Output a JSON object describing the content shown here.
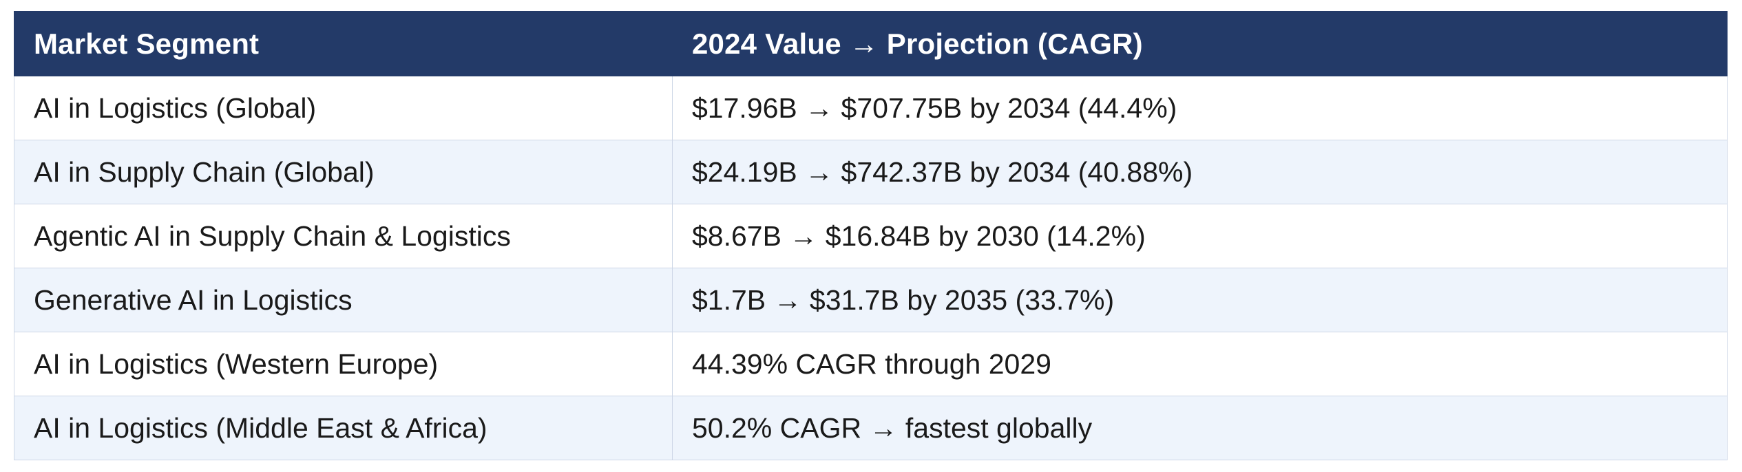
{
  "table": {
    "headers": [
      "Market Segment",
      "2024 Value → Projection (CAGR)"
    ],
    "rows": [
      [
        "AI in Logistics (Global)",
        "$17.96B → $707.75B by 2034 (44.4%)"
      ],
      [
        "AI in Supply Chain (Global)",
        "$24.19B → $742.37B by 2034 (40.88%)"
      ],
      [
        "Agentic AI in Supply Chain & Logistics",
        "$8.67B → $16.84B by 2030 (14.2%)"
      ],
      [
        "Generative AI in Logistics",
        "$1.7B → $31.7B by 2035 (33.7%)"
      ],
      [
        "AI in Logistics (Western Europe)",
        "44.39% CAGR through 2029"
      ],
      [
        "AI in Logistics (Middle East & Africa)",
        "50.2% CAGR → fastest globally"
      ]
    ]
  },
  "colors": {
    "header_bg": "#233a68",
    "header_text": "#ffffff",
    "row_alt_bg": "#eef4fc",
    "border": "#cdd6e6"
  }
}
